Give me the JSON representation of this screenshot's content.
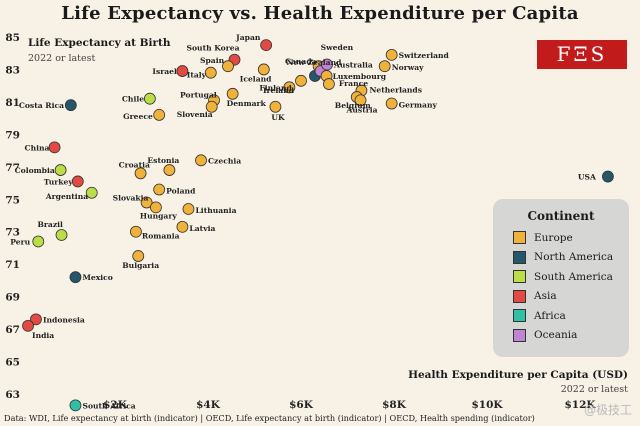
{
  "title": "Life Expectancy vs. Health Expenditure per Capita",
  "y_label": "Life Expectancy at Birth",
  "y_sublabel": "2022 or latest",
  "x_label": "Health Expenditure per Capita (USD)",
  "x_sublabel": "2022 or latest",
  "logo_text": "FΞS",
  "source": "Data: WDI, Life expectancy at birth (indicator) | OECD, Life expectancy at birth (indicator) | OECD, Health spending (indicator)",
  "watermark": "@极技工",
  "legend": {
    "title": "Continent",
    "items": [
      {
        "label": "Europe",
        "color": "#f0b23a"
      },
      {
        "label": "North America",
        "color": "#24566c"
      },
      {
        "label": "South America",
        "color": "#bcdc48"
      },
      {
        "label": "Asia",
        "color": "#e34a43"
      },
      {
        "label": "Africa",
        "color": "#2fc0a6"
      },
      {
        "label": "Oceania",
        "color": "#c084d2"
      }
    ]
  },
  "chart_data": {
    "type": "scatter",
    "title": "Life Expectancy vs. Health Expenditure per Capita",
    "xlabel": "Health Expenditure per Capita (USD)",
    "ylabel": "Life Expectancy at Birth",
    "xlim": [
      0,
      13000
    ],
    "ylim": [
      61,
      85
    ],
    "x_ticks": [
      2000,
      4000,
      6000,
      8000,
      10000,
      12000
    ],
    "x_tick_labels": [
      "$2K",
      "$4K",
      "$6K",
      "$8K",
      "$10K",
      "$12K"
    ],
    "y_ticks": [
      63,
      65,
      67,
      69,
      71,
      73,
      75,
      77,
      79,
      81,
      83,
      85
    ],
    "grid": false,
    "legend_position": "right",
    "points": [
      {
        "label": "Japan",
        "x": 5250,
        "y": 84.5,
        "continent": "Asia"
      },
      {
        "label": "South Korea",
        "x": 4570,
        "y": 83.6,
        "continent": "Asia"
      },
      {
        "label": "Spain",
        "x": 4430,
        "y": 83.2,
        "continent": "Europe"
      },
      {
        "label": "Italy",
        "x": 4060,
        "y": 82.8,
        "continent": "Europe"
      },
      {
        "label": "Israel",
        "x": 3450,
        "y": 82.9,
        "continent": "Asia"
      },
      {
        "label": "Iceland",
        "x": 5200,
        "y": 83.0,
        "continent": "Europe"
      },
      {
        "label": "Canada",
        "x": 6300,
        "y": 82.6,
        "continent": "North America"
      },
      {
        "label": "Sweden",
        "x": 6380,
        "y": 83.2,
        "continent": "Europe"
      },
      {
        "label": "New Zealand",
        "x": 6420,
        "y": 82.9,
        "continent": "Oceania"
      },
      {
        "label": "Australia",
        "x": 6560,
        "y": 83.3,
        "continent": "Oceania"
      },
      {
        "label": "Switzerland",
        "x": 7950,
        "y": 83.9,
        "continent": "Europe"
      },
      {
        "label": "Norway",
        "x": 7800,
        "y": 83.2,
        "continent": "Europe"
      },
      {
        "label": "Luxembourg",
        "x": 6550,
        "y": 82.6,
        "continent": "Europe"
      },
      {
        "label": "France",
        "x": 6600,
        "y": 82.1,
        "continent": "Europe"
      },
      {
        "label": "Ireland",
        "x": 6000,
        "y": 82.3,
        "continent": "Europe"
      },
      {
        "label": "Finland",
        "x": 5750,
        "y": 81.9,
        "continent": "Europe"
      },
      {
        "label": "Netherlands",
        "x": 7300,
        "y": 81.7,
        "continent": "Europe"
      },
      {
        "label": "Belgium",
        "x": 7200,
        "y": 81.3,
        "continent": "Europe"
      },
      {
        "label": "Austria",
        "x": 7280,
        "y": 81.1,
        "continent": "Europe"
      },
      {
        "label": "Germany",
        "x": 7950,
        "y": 80.9,
        "continent": "Europe"
      },
      {
        "label": "Portugal",
        "x": 4130,
        "y": 81.1,
        "continent": "Europe"
      },
      {
        "label": "Slovenia",
        "x": 4080,
        "y": 80.7,
        "continent": "Europe"
      },
      {
        "label": "Denmark",
        "x": 4530,
        "y": 81.5,
        "continent": "Europe"
      },
      {
        "label": "UK",
        "x": 5450,
        "y": 80.7,
        "continent": "Europe"
      },
      {
        "label": "Chile",
        "x": 2750,
        "y": 81.2,
        "continent": "South America"
      },
      {
        "label": "Greece",
        "x": 2950,
        "y": 80.2,
        "continent": "Europe"
      },
      {
        "label": "Costa Rica",
        "x": 1050,
        "y": 80.8,
        "continent": "North America"
      },
      {
        "label": "USA",
        "x": 12600,
        "y": 76.4,
        "continent": "North America"
      },
      {
        "label": "China",
        "x": 700,
        "y": 78.2,
        "continent": "Asia"
      },
      {
        "label": "Colombia",
        "x": 830,
        "y": 76.8,
        "continent": "South America"
      },
      {
        "label": "Turkey",
        "x": 1200,
        "y": 76.1,
        "continent": "Asia"
      },
      {
        "label": "Argentina",
        "x": 1500,
        "y": 75.4,
        "continent": "South America"
      },
      {
        "label": "Croatia",
        "x": 2550,
        "y": 76.6,
        "continent": "Europe"
      },
      {
        "label": "Estonia",
        "x": 3170,
        "y": 76.8,
        "continent": "Europe"
      },
      {
        "label": "Czechia",
        "x": 3850,
        "y": 77.4,
        "continent": "Europe"
      },
      {
        "label": "Slovakia",
        "x": 2680,
        "y": 74.8,
        "continent": "Europe"
      },
      {
        "label": "Hungary",
        "x": 2880,
        "y": 74.5,
        "continent": "Europe"
      },
      {
        "label": "Poland",
        "x": 2950,
        "y": 75.6,
        "continent": "Europe"
      },
      {
        "label": "Lithuania",
        "x": 3580,
        "y": 74.4,
        "continent": "Europe"
      },
      {
        "label": "Latvia",
        "x": 3450,
        "y": 73.3,
        "continent": "Europe"
      },
      {
        "label": "Romania",
        "x": 2450,
        "y": 73.0,
        "continent": "Europe"
      },
      {
        "label": "Bulgaria",
        "x": 2500,
        "y": 71.5,
        "continent": "Europe"
      },
      {
        "label": "Brazil",
        "x": 850,
        "y": 72.8,
        "continent": "South America"
      },
      {
        "label": "Peru",
        "x": 350,
        "y": 72.4,
        "continent": "South America"
      },
      {
        "label": "Mexico",
        "x": 1150,
        "y": 70.2,
        "continent": "North America"
      },
      {
        "label": "Indonesia",
        "x": 300,
        "y": 67.6,
        "continent": "Asia"
      },
      {
        "label": "India",
        "x": 130,
        "y": 67.2,
        "continent": "Asia"
      },
      {
        "label": "South Africa",
        "x": 1150,
        "y": 62.3,
        "continent": "Africa"
      }
    ]
  }
}
